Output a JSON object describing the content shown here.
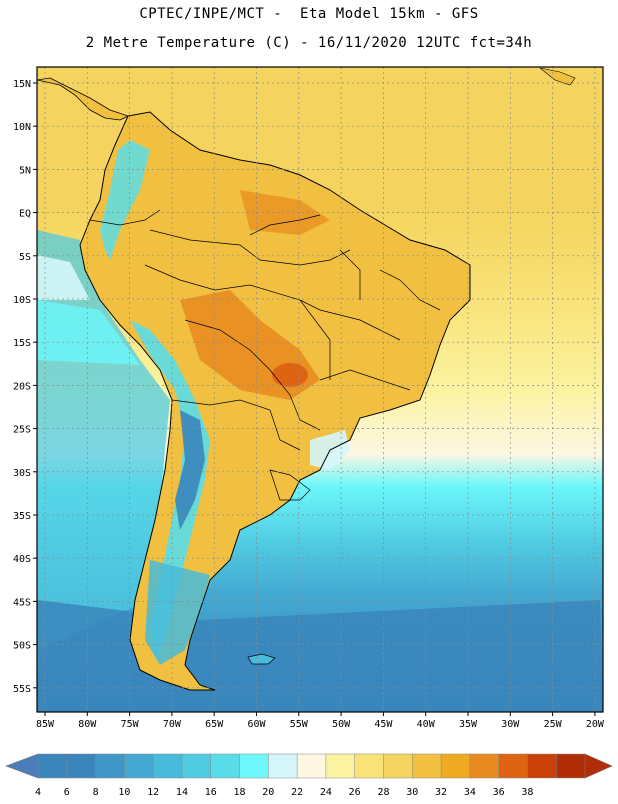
{
  "header": {
    "line1": "CPTEC/INPE/MCT -  Eta Model 15km - GFS",
    "line2": "2 Metre Temperature (C) - 16/11/2020 12UTC fct=34h"
  },
  "axes": {
    "lat_labels": [
      "15N",
      "10N",
      "5N",
      "EQ",
      "5S",
      "10S",
      "15S",
      "20S",
      "25S",
      "30S",
      "35S",
      "40S",
      "45S",
      "50S",
      "55S"
    ],
    "lon_labels": [
      "85W",
      "80W",
      "75W",
      "70W",
      "65W",
      "60W",
      "55W",
      "50W",
      "45W",
      "40W",
      "35W",
      "30W",
      "25W",
      "20W"
    ]
  },
  "colorbar": {
    "labels": [
      "4",
      "6",
      "8",
      "10",
      "12",
      "14",
      "16",
      "18",
      "20",
      "22",
      "24",
      "26",
      "28",
      "30",
      "32",
      "34",
      "36",
      "38"
    ],
    "colors": [
      "#3a86bc",
      "#3a86bc",
      "#3e97c7",
      "#43a8d2",
      "#48bada",
      "#50cbe2",
      "#5adde8",
      "#6cf7fb",
      "#d4f6fb",
      "#fdf7e4",
      "#fbf3a0",
      "#f9e277",
      "#f4d45e",
      "#f1c041",
      "#eeab22",
      "#e88a1e",
      "#de6413",
      "#c94109",
      "#b12d07"
    ],
    "low_arrow": "#4b7dbb",
    "high_arrow": "#b12d07"
  },
  "map_colors": {
    "ocean_tropical": "#f4d45e",
    "ocean_warm_band": "#f9e277",
    "ocean_light": "#fbf3a0",
    "ocean_pale": "#fdf7e4",
    "ocean_cyan": "#6cf7fb",
    "ocean_mid": "#48bada",
    "ocean_deep": "#3a86bc",
    "land": "#f1c041",
    "land_hot": "#e88a1e",
    "andes_cool": "#5adde8",
    "andes_cold": "#3a86bc"
  }
}
